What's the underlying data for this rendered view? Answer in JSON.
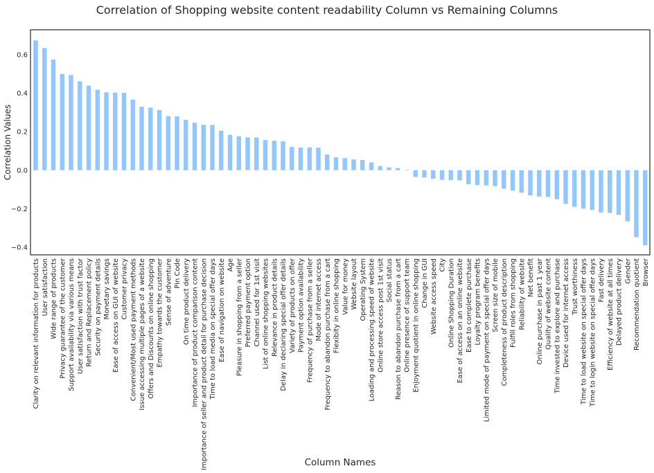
{
  "chart_data": {
    "type": "bar",
    "title": "Correlation of Shopping website content readability Column vs Remaining Columns",
    "xlabel": "Column Names",
    "ylabel": "Correlation Values",
    "ylim": [
      -0.44,
      0.73
    ],
    "yticks": [
      -0.4,
      -0.2,
      0.0,
      0.2,
      0.4,
      0.6
    ],
    "ytick_labels": [
      "−0.4",
      "−0.2",
      "0.0",
      "0.2",
      "0.4",
      "0.6"
    ],
    "grid": false,
    "bar_color": "#92c6ff",
    "categories": [
      "Clarity on relevant information for products",
      "User satisfaction",
      "Wide range of products",
      "Privacy guarantee of the customer",
      "Support availability via various means",
      "User satisfaction with trust factor",
      "Return and Replacement policy",
      "Security on payment details",
      "Monetary savings",
      "Ease of access on GUI of website",
      "Customer privacy",
      "Convenient/Most used payment methods",
      "Issue accessing multiple pages of a website",
      "Offers and Discounts on online shopping",
      "Empathy towards the customer",
      "Sense of adventure",
      "Pin Code",
      "On time product delivery",
      "Importance of product comparison content",
      "Importance of seller and product detail for purchase decision",
      "Time to load media on special offer days",
      "Ease of navigation on website",
      "Age",
      "Pleasure in shopping from a seller",
      "Preferred payment option",
      "Channel used for 1st visit",
      "List of online shopping websites",
      "Relevance in product details",
      "Delay in declaring special offer details",
      "Variety of products on offer",
      "Payment option availability",
      "Frequency of purchase from a seller",
      "Mode of internet access",
      "Frequency to abandon purchase from a cart",
      "Flexibity in online shopping",
      "Value for money",
      "Website layout",
      "Operating System",
      "Loading and processing speed of website",
      "Online store access post 1st visit",
      "Social status",
      "Reason to abandon purchase from a cart",
      "Online presence of support team",
      "Enjoyment quotient in online shopping",
      "Change in GUI",
      "Website access speed",
      "City",
      "Online Shopping Duration",
      "Ease of access on an online website",
      "Ease to complete purchase",
      "Loyalty program benefits",
      "Limited mode of payment on special offer days",
      "Screen size of mobile",
      "Completeness of product description",
      "Fulfill roles from shopping",
      "Reliability of website",
      "Net benefit",
      "Online purchase in past 1 year",
      "Quality of website content",
      "Time invested to explore and purchase",
      "Device used for internet access",
      "Trust worthiness",
      "Time to load website on special offer days",
      "Time to login website on special offer days",
      "Fast delivery",
      "Efficiency of website at all times",
      "Delayed product delivery",
      "Gender",
      "Recommendation quotient",
      "Browser"
    ],
    "values": [
      0.675,
      0.635,
      0.575,
      0.5,
      0.495,
      0.462,
      0.44,
      0.418,
      0.405,
      0.403,
      0.402,
      0.368,
      0.33,
      0.325,
      0.313,
      0.281,
      0.28,
      0.262,
      0.247,
      0.236,
      0.235,
      0.205,
      0.184,
      0.176,
      0.171,
      0.17,
      0.157,
      0.153,
      0.15,
      0.121,
      0.118,
      0.118,
      0.117,
      0.082,
      0.067,
      0.063,
      0.056,
      0.053,
      0.041,
      0.022,
      0.015,
      0.011,
      0.002,
      -0.035,
      -0.038,
      -0.044,
      -0.05,
      -0.052,
      -0.053,
      -0.073,
      -0.077,
      -0.079,
      -0.083,
      -0.096,
      -0.106,
      -0.117,
      -0.131,
      -0.137,
      -0.139,
      -0.151,
      -0.175,
      -0.19,
      -0.2,
      -0.207,
      -0.22,
      -0.222,
      -0.232,
      -0.266,
      -0.348,
      -0.39
    ]
  }
}
